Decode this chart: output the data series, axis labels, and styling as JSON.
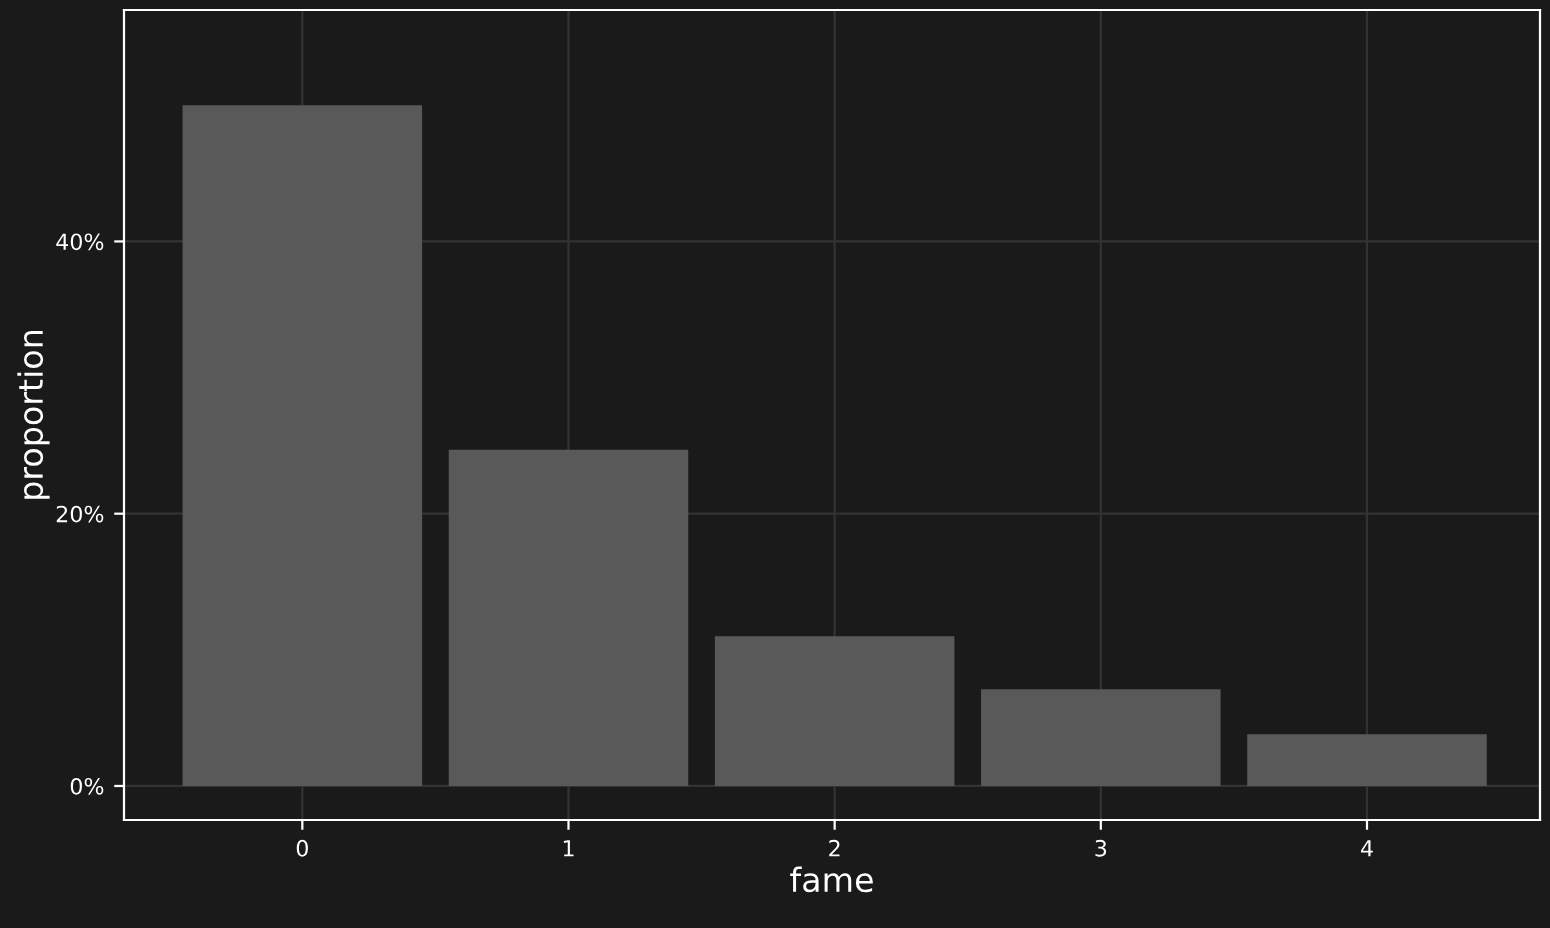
{
  "chart_data": {
    "type": "bar",
    "xlabel": "fame",
    "ylabel": "proportion",
    "categories": [
      "0",
      "1",
      "2",
      "3",
      "4"
    ],
    "values": [
      50.0,
      24.7,
      11.0,
      7.1,
      3.8
    ],
    "color": "#595959",
    "ylim": [
      -2.5,
      57
    ],
    "yticks": [
      {
        "value": 0,
        "label": "0%"
      },
      {
        "value": 20,
        "label": "20%"
      },
      {
        "value": 40,
        "label": "40%"
      }
    ],
    "grid": true,
    "legend": false
  }
}
